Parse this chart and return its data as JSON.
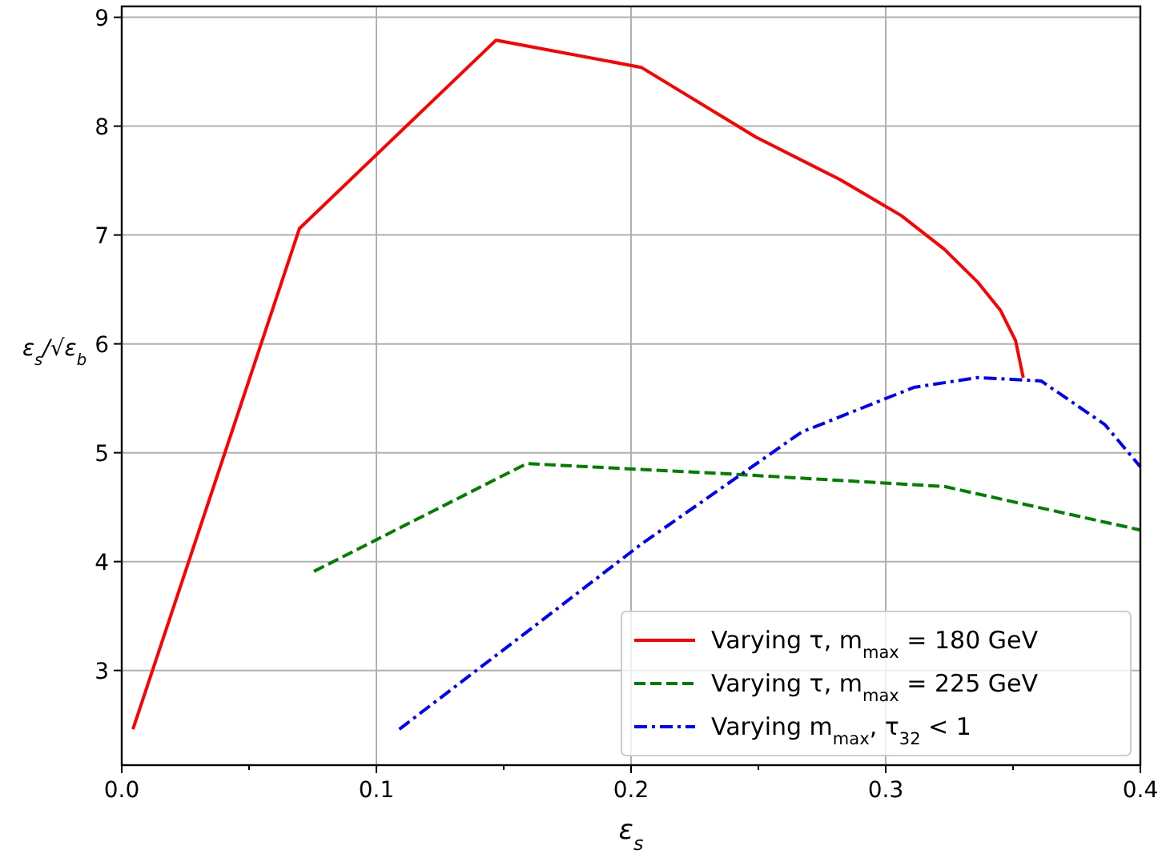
{
  "chart_data": {
    "type": "line",
    "xlabel": "ε$_{s}$",
    "ylabel": "ε$_{s}$/√ε$_{b}$",
    "xlim": [
      0,
      0.4
    ],
    "ylim": [
      2.13,
      9.1
    ],
    "xticks": [
      {
        "value": 0,
        "label": "0.0"
      },
      {
        "value": 0.05,
        "label": null
      },
      {
        "value": 0.1,
        "label": "0.1"
      },
      {
        "value": 0.15,
        "label": null
      },
      {
        "value": 0.2,
        "label": "0.2"
      },
      {
        "value": 0.25,
        "label": null
      },
      {
        "value": 0.3,
        "label": "0.3"
      },
      {
        "value": 0.35,
        "label": null
      },
      {
        "value": 0.4,
        "label": "0.4"
      }
    ],
    "yticks": [
      3,
      4,
      5,
      6,
      7,
      8,
      9
    ],
    "grid": true,
    "legend": "bottom right",
    "series": [
      {
        "name": "Varying τ, m$_{max}$ = 180 GeV",
        "color": "#ff0000",
        "line_style": "solid",
        "x": [
          0.0044,
          0.0698,
          0.147,
          0.204,
          0.249,
          0.282,
          0.306,
          0.323,
          0.336,
          0.345,
          0.351,
          0.354
        ],
        "values": [
          2.46,
          7.06,
          8.79,
          8.54,
          7.9,
          7.51,
          7.18,
          6.87,
          6.57,
          6.31,
          6.03,
          5.69
        ]
      },
      {
        "name": "Varying τ, m$_{max}$ = 225 GeV",
        "color": "#008000",
        "line_style": "dashed",
        "x": [
          0.0755,
          0.159,
          0.235,
          0.323,
          0.4
        ],
        "values": [
          3.91,
          4.9,
          4.81,
          4.69,
          4.29
        ]
      },
      {
        "name": "Varying m$_{max}$, τ$_{32}$ < 1",
        "color": "#0000ff",
        "line_style": "dashdot",
        "x": [
          0.109,
          0.16,
          0.204,
          0.267,
          0.311,
          0.336,
          0.361,
          0.386,
          0.4
        ],
        "values": [
          2.46,
          3.37,
          4.16,
          5.19,
          5.6,
          5.69,
          5.66,
          5.26,
          4.87
        ]
      }
    ]
  }
}
